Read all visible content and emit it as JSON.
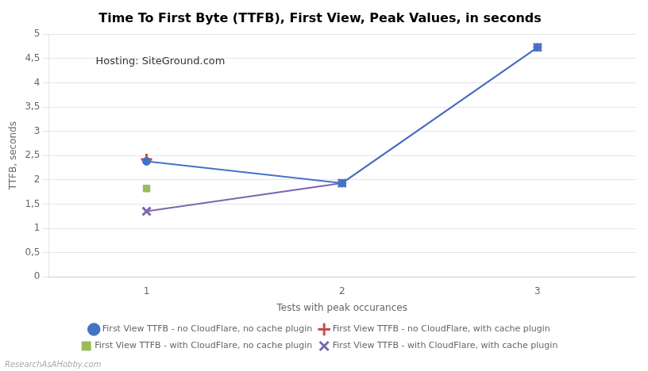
{
  "chart_data": {
    "type": "line",
    "title": "Time To First Byte (TTFB), First View, Peak Values, in seconds",
    "x_label": "Tests with peak occurances",
    "y_label": "TTFB, seconds",
    "annotations": [
      "Hosting: SiteGround.com",
      "ResearchAsAHobby.com"
    ],
    "xlim": [
      0.5,
      3.5
    ],
    "xticks": [
      1,
      2,
      3
    ],
    "ylim": [
      0,
      5
    ],
    "yticks": [
      0,
      {
        "value": 0.5,
        "label": "0,5"
      },
      1,
      {
        "value": 1.5,
        "label": "1,5"
      },
      2,
      {
        "value": 2.5,
        "label": "2,5"
      },
      3,
      {
        "value": 3.5,
        "label": "3,5"
      },
      4,
      {
        "value": 4.5,
        "label": "4,5"
      },
      5
    ],
    "grid": "y",
    "legend": "bottom",
    "series": [
      {
        "name": "First View TTFB - no CloudFlare, no cache plugin",
        "color": "#4472C4",
        "marker": "circle",
        "line_style": "solid",
        "x": [
          1,
          2,
          3
        ],
        "values": [
          2.38,
          1.93,
          4.73
        ]
      },
      {
        "name": "First View TTFB - no CloudFlare, with cache plugin",
        "color": "#C0504D",
        "marker": "plus",
        "line_style": "none",
        "x": [
          1
        ],
        "values": [
          2.42
        ]
      },
      {
        "name": "First View TTFB - with CloudFlare, no cache plugin",
        "color": "#9BBB59",
        "marker": "square",
        "line_style": "none",
        "x": [
          1
        ],
        "values": [
          1.82
        ]
      },
      {
        "name": "First View TTFB - with CloudFlare, with cache plugin",
        "color": "#7B68AE",
        "marker": "x",
        "line_style": "solid",
        "x": [
          1,
          2,
          3
        ],
        "values": [
          1.35,
          1.93,
          4.73
        ]
      }
    ]
  }
}
